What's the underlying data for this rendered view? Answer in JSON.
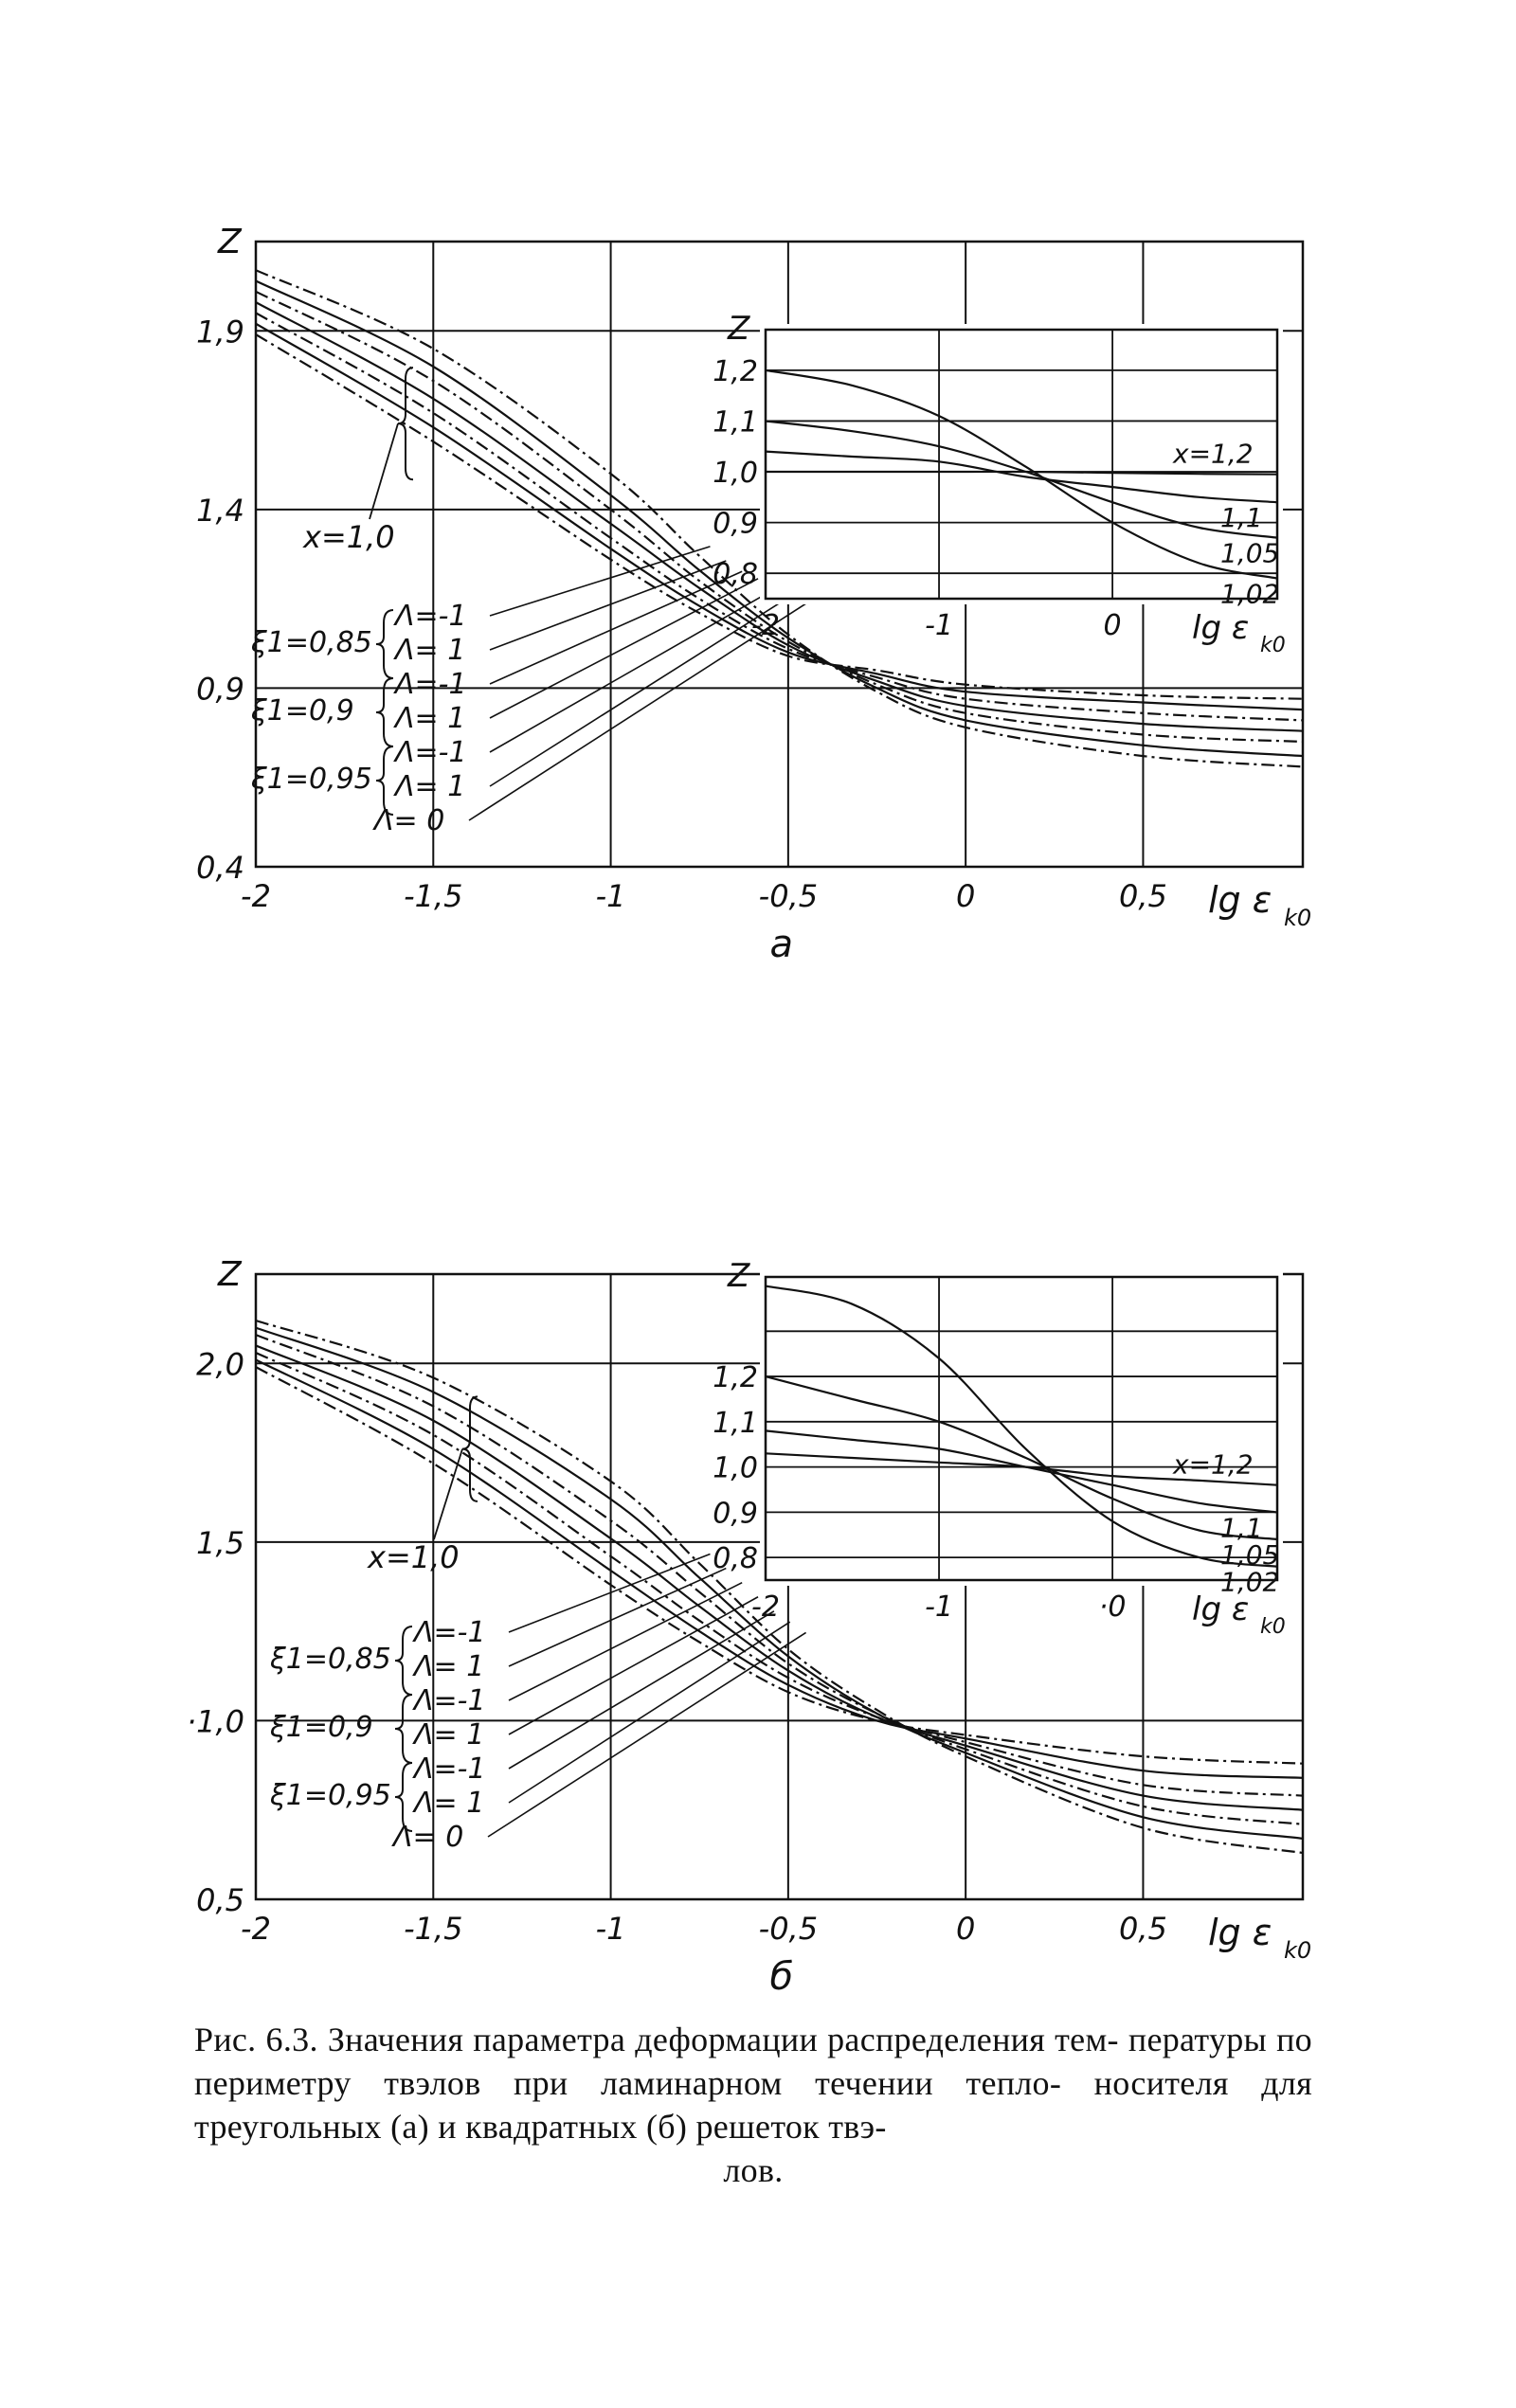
{
  "chart_data": [
    {
      "panel": "a",
      "type": "line",
      "panel_label": "а",
      "ylabel": "Z",
      "xlabel": "lg ε",
      "xlabel_sub": "k0",
      "xlim": [
        -2,
        0.95
      ],
      "ylim": [
        0.4,
        2.15
      ],
      "xticks": [
        -2,
        -1.5,
        -1,
        -0.5,
        0,
        0.5
      ],
      "xtick_labels": [
        "-2",
        "-1,5",
        "-1",
        "-0,5",
        "0",
        "0,5"
      ],
      "yticks": [
        0.4,
        0.9,
        1.4,
        1.9
      ],
      "ytick_labels": [
        "0,4",
        "0,9",
        "1,4",
        "1,9"
      ],
      "grid": true,
      "bracket_label": "x=1,0",
      "legend": [
        {
          "group": "ξ1=0,85",
          "entries": [
            "Λ=-1",
            "Λ= 1"
          ]
        },
        {
          "group": "ξ1=0,9",
          "entries": [
            "Λ=-1",
            "Λ= 1"
          ]
        },
        {
          "group": "ξ1=0,95",
          "entries": [
            "Λ=-1",
            "Λ= 1"
          ]
        },
        {
          "group": "",
          "entries": [
            "Λ= 0"
          ]
        }
      ],
      "x": [
        -2,
        -1.5,
        -1,
        -0.75,
        -0.5,
        -0.25,
        0,
        0.5,
        0.95
      ],
      "series": [
        {
          "label": "ξ1=0,85 Λ=-1",
          "dash": "dashdot",
          "values": [
            2.07,
            1.85,
            1.5,
            1.27,
            1.05,
            0.89,
            0.79,
            0.71,
            0.68
          ]
        },
        {
          "label": "ξ1=0,85 Λ=1",
          "dash": "solid",
          "values": [
            2.04,
            1.8,
            1.44,
            1.23,
            1.04,
            0.9,
            0.81,
            0.74,
            0.71
          ]
        },
        {
          "label": "ξ1=0,9 Λ=-1",
          "dash": "dashdot",
          "values": [
            2.01,
            1.76,
            1.4,
            1.2,
            1.03,
            0.91,
            0.83,
            0.77,
            0.75
          ]
        },
        {
          "label": "ξ1=0,9 Λ=1",
          "dash": "solid",
          "values": [
            1.98,
            1.71,
            1.36,
            1.18,
            1.02,
            0.92,
            0.85,
            0.8,
            0.78
          ]
        },
        {
          "label": "ξ1=0,95 Λ=-1",
          "dash": "dashdot",
          "values": [
            1.95,
            1.67,
            1.32,
            1.15,
            1.01,
            0.93,
            0.87,
            0.83,
            0.81
          ]
        },
        {
          "label": "ξ1=0,95 Λ=1",
          "dash": "solid",
          "values": [
            1.92,
            1.63,
            1.29,
            1.13,
            1.0,
            0.94,
            0.89,
            0.86,
            0.84
          ]
        },
        {
          "label": "Λ=0",
          "dash": "dashdot",
          "values": [
            1.89,
            1.59,
            1.26,
            1.11,
            0.99,
            0.95,
            0.91,
            0.88,
            0.87
          ]
        }
      ],
      "inset": {
        "ylabel": "Z",
        "xlabel": "lg ε",
        "xlabel_sub": "k0",
        "xlim": [
          -2,
          0.95
        ],
        "ylim": [
          0.75,
          1.28
        ],
        "xtick_labels": [
          "-2",
          "-1",
          "0"
        ],
        "ytick_labels": [
          "0,8",
          "0,9",
          "1,0",
          "1,1",
          "1,2"
        ],
        "x": [
          -2,
          -1.5,
          -1,
          -0.5,
          0,
          0.5,
          0.95
        ],
        "series": [
          {
            "label": "x=1,2",
            "values": [
              1.0,
              1.0,
              1.0,
              1.0,
              0.998,
              0.996,
              0.995
            ]
          },
          {
            "label": "1,1",
            "values": [
              1.04,
              1.03,
              1.02,
              0.99,
              0.97,
              0.95,
              0.94
            ]
          },
          {
            "label": "1,05",
            "values": [
              1.1,
              1.08,
              1.05,
              1.0,
              0.94,
              0.89,
              0.87
            ]
          },
          {
            "label": "1,02",
            "values": [
              1.2,
              1.17,
              1.11,
              1.01,
              0.9,
              0.82,
              0.79
            ]
          }
        ]
      }
    },
    {
      "panel": "b",
      "type": "line",
      "panel_label": "б",
      "ylabel": "Z",
      "xlabel": "lg ε",
      "xlabel_sub": "k0",
      "xlim": [
        -2,
        0.95
      ],
      "ylim": [
        0.5,
        2.25
      ],
      "xticks": [
        -2,
        -1.5,
        -1,
        -0.5,
        0,
        0.5
      ],
      "xtick_labels": [
        "-2",
        "-1,5",
        "-1",
        "-0,5",
        "0",
        "0,5"
      ],
      "yticks": [
        0.5,
        1.0,
        1.5,
        2.0
      ],
      "ytick_labels": [
        "0,5",
        "·1,0",
        "1,5",
        "2,0"
      ],
      "grid": true,
      "bracket_label": "x=1,0",
      "legend": [
        {
          "group": "ξ1=0,85",
          "entries": [
            "Λ=-1",
            "Λ= 1"
          ]
        },
        {
          "group": "ξ1=0,9",
          "entries": [
            "Λ=-1",
            "Λ= 1"
          ]
        },
        {
          "group": "ξ1=0,95",
          "entries": [
            "Λ=-1",
            "Λ= 1"
          ]
        },
        {
          "group": "",
          "entries": [
            "Λ= 0"
          ]
        }
      ],
      "x": [
        -2,
        -1.5,
        -1,
        -0.75,
        -0.5,
        -0.25,
        0,
        0.5,
        0.95
      ],
      "series": [
        {
          "label": "ξ1=0,85 Λ=-1",
          "dash": "dashdot",
          "values": [
            2.12,
            1.96,
            1.67,
            1.44,
            1.2,
            1.03,
            0.9,
            0.7,
            0.63
          ]
        },
        {
          "label": "ξ1=0,85 Λ=1",
          "dash": "solid",
          "values": [
            2.1,
            1.92,
            1.62,
            1.4,
            1.18,
            1.02,
            0.91,
            0.73,
            0.67
          ]
        },
        {
          "label": "ξ1=0,9 Λ=-1",
          "dash": "dashdot",
          "values": [
            2.08,
            1.88,
            1.56,
            1.36,
            1.16,
            1.02,
            0.92,
            0.76,
            0.71
          ]
        },
        {
          "label": "ξ1=0,9 Λ=1",
          "dash": "solid",
          "values": [
            2.05,
            1.84,
            1.51,
            1.32,
            1.14,
            1.01,
            0.93,
            0.79,
            0.75
          ]
        },
        {
          "label": "ξ1=0,95 Λ=-1",
          "dash": "dashdot",
          "values": [
            2.03,
            1.8,
            1.46,
            1.28,
            1.12,
            1.01,
            0.94,
            0.82,
            0.79
          ]
        },
        {
          "label": "ξ1=0,95 Λ=1",
          "dash": "solid",
          "values": [
            2.01,
            1.76,
            1.42,
            1.25,
            1.1,
            1.0,
            0.95,
            0.86,
            0.84
          ]
        },
        {
          "label": "Λ=0",
          "dash": "dashdot",
          "values": [
            1.99,
            1.72,
            1.38,
            1.22,
            1.08,
            1.0,
            0.96,
            0.9,
            0.88
          ]
        }
      ],
      "inset": {
        "ylabel": "Z",
        "xlabel": "lg ε",
        "xlabel_sub": "k0",
        "xlim": [
          -2,
          0.95
        ],
        "ylim": [
          0.75,
          1.42
        ],
        "xtick_labels": [
          "-2",
          "-1",
          "·0"
        ],
        "ytick_labels": [
          "0,8",
          "0,9",
          "1,0",
          "1,1",
          "1,2"
        ],
        "x": [
          -2,
          -1.5,
          -1,
          -0.5,
          0,
          0.5,
          0.95
        ],
        "series": [
          {
            "label": "x=1,2",
            "values": [
              1.03,
              1.02,
              1.01,
              1.0,
              0.98,
              0.97,
              0.96
            ]
          },
          {
            "label": "1,1",
            "values": [
              1.08,
              1.06,
              1.04,
              1.0,
              0.96,
              0.92,
              0.9
            ]
          },
          {
            "label": "1,05",
            "values": [
              1.2,
              1.15,
              1.1,
              1.02,
              0.93,
              0.86,
              0.84
            ]
          },
          {
            "label": "1,02",
            "values": [
              1.4,
              1.36,
              1.24,
              1.04,
              0.88,
              0.8,
              0.78
            ]
          }
        ]
      }
    }
  ],
  "caption": {
    "line1": "Рис. 6.3. Значения параметра деформации распределения тем-",
    "line2": "пературы по периметру твэлов при ламинарном течении тепло-",
    "line3": "носителя для треугольных (а) и квадратных (б) решеток твэ-",
    "line4": "лов."
  }
}
